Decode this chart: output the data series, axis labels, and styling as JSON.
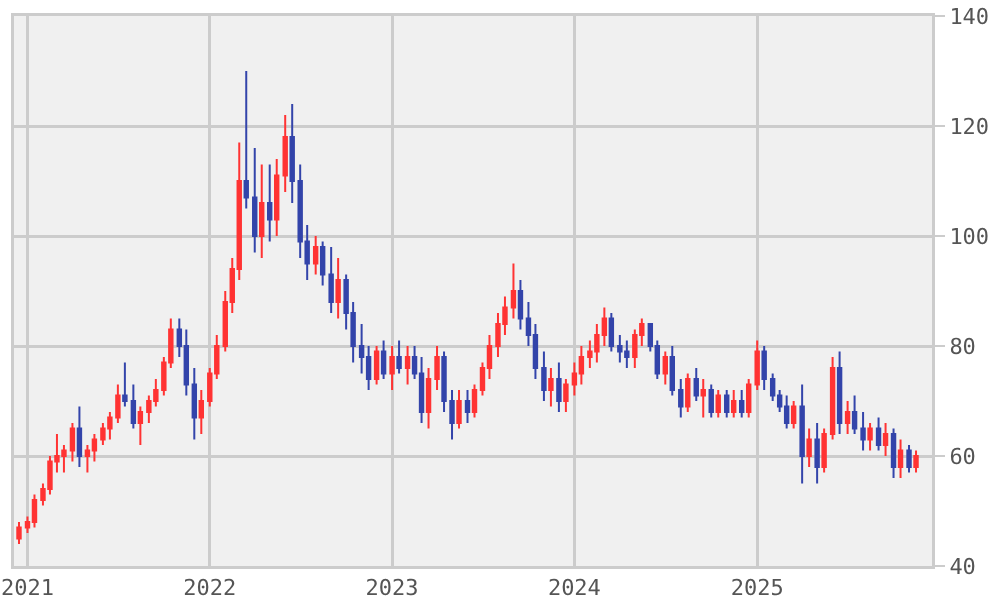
{
  "chart_data": {
    "type": "candlestick",
    "x": [
      "2020-12-15",
      "2021-01-01",
      "2021-01-15",
      "2021-02-01",
      "2021-02-15",
      "2021-03-01",
      "2021-03-15",
      "2021-04-01",
      "2021-04-15",
      "2021-05-01",
      "2021-05-15",
      "2021-06-01",
      "2021-06-15",
      "2021-07-01",
      "2021-07-15",
      "2021-08-01",
      "2021-08-15",
      "2021-09-01",
      "2021-09-15",
      "2021-10-01",
      "2021-10-15",
      "2021-11-01",
      "2021-11-15",
      "2021-12-01",
      "2021-12-15",
      "2022-01-01",
      "2022-01-15",
      "2022-02-01",
      "2022-02-15",
      "2022-03-01",
      "2022-03-15",
      "2022-04-01",
      "2022-04-15",
      "2022-05-01",
      "2022-05-15",
      "2022-06-01",
      "2022-06-15",
      "2022-07-01",
      "2022-07-15",
      "2022-08-01",
      "2022-08-15",
      "2022-09-01",
      "2022-09-15",
      "2022-10-01",
      "2022-10-15",
      "2022-11-01",
      "2022-11-15",
      "2022-12-01",
      "2022-12-15",
      "2023-01-01",
      "2023-01-15",
      "2023-02-01",
      "2023-02-15",
      "2023-03-01",
      "2023-03-15",
      "2023-04-01",
      "2023-04-15",
      "2023-05-01",
      "2023-05-15",
      "2023-06-01",
      "2023-06-15",
      "2023-07-01",
      "2023-07-15",
      "2023-08-01",
      "2023-08-15",
      "2023-09-01",
      "2023-09-15",
      "2023-10-01",
      "2023-10-15",
      "2023-11-01",
      "2023-11-15",
      "2023-12-01",
      "2023-12-15",
      "2024-01-01",
      "2024-01-15",
      "2024-02-01",
      "2024-02-15",
      "2024-03-01",
      "2024-03-15",
      "2024-04-01",
      "2024-04-15",
      "2024-05-01",
      "2024-05-15",
      "2024-06-01",
      "2024-06-15",
      "2024-07-01",
      "2024-07-15",
      "2024-08-01",
      "2024-08-15",
      "2024-09-01",
      "2024-09-15",
      "2024-10-01",
      "2024-10-15",
      "2024-11-01",
      "2024-11-15",
      "2024-12-01",
      "2024-12-15",
      "2025-01-01",
      "2025-01-15",
      "2025-02-01",
      "2025-02-15",
      "2025-03-01",
      "2025-03-15",
      "2025-04-01",
      "2025-04-15",
      "2025-05-01",
      "2025-05-15",
      "2025-06-01",
      "2025-06-15",
      "2025-07-01",
      "2025-07-15",
      "2025-08-01",
      "2025-08-15",
      "2025-09-01",
      "2025-09-15",
      "2025-10-01",
      "2025-10-15",
      "2025-11-01",
      "2025-11-15"
    ],
    "ohlc": [
      [
        45,
        48,
        44,
        47
      ],
      [
        47,
        49,
        46,
        48
      ],
      [
        48,
        53,
        47,
        52
      ],
      [
        52,
        55,
        51,
        54
      ],
      [
        54,
        60,
        53,
        59
      ],
      [
        59,
        64,
        57,
        60
      ],
      [
        60,
        62,
        57,
        61
      ],
      [
        61,
        66,
        59,
        65
      ],
      [
        65,
        69,
        58,
        60
      ],
      [
        60,
        62,
        57,
        61
      ],
      [
        61,
        64,
        59,
        63
      ],
      [
        63,
        66,
        62,
        65
      ],
      [
        65,
        68,
        63,
        67
      ],
      [
        67,
        73,
        66,
        71
      ],
      [
        71,
        77,
        69,
        70
      ],
      [
        70,
        73,
        65,
        66
      ],
      [
        66,
        69,
        62,
        68
      ],
      [
        68,
        71,
        66,
        70
      ],
      [
        70,
        74,
        69,
        72
      ],
      [
        72,
        78,
        71,
        77
      ],
      [
        77,
        85,
        76,
        83
      ],
      [
        83,
        85,
        78,
        80
      ],
      [
        80,
        83,
        71,
        73
      ],
      [
        73,
        76,
        63,
        67
      ],
      [
        67,
        72,
        64,
        70
      ],
      [
        70,
        76,
        69,
        75
      ],
      [
        75,
        82,
        74,
        80
      ],
      [
        80,
        90,
        79,
        88
      ],
      [
        88,
        96,
        86,
        94
      ],
      [
        94,
        117,
        92,
        110
      ],
      [
        110,
        130,
        105,
        107
      ],
      [
        107,
        116,
        97,
        100
      ],
      [
        100,
        113,
        96,
        106
      ],
      [
        106,
        113,
        99,
        103
      ],
      [
        103,
        114,
        100,
        111
      ],
      [
        111,
        122,
        108,
        118
      ],
      [
        118,
        124,
        106,
        110
      ],
      [
        110,
        113,
        96,
        99
      ],
      [
        99,
        102,
        92,
        95
      ],
      [
        95,
        100,
        93,
        98
      ],
      [
        98,
        99,
        91,
        93
      ],
      [
        93,
        98,
        86,
        88
      ],
      [
        88,
        96,
        85,
        92
      ],
      [
        92,
        93,
        83,
        86
      ],
      [
        86,
        88,
        77,
        80
      ],
      [
        80,
        84,
        75,
        78
      ],
      [
        78,
        80,
        72,
        74
      ],
      [
        74,
        80,
        73,
        79
      ],
      [
        79,
        81,
        74,
        75
      ],
      [
        75,
        80,
        72,
        78
      ],
      [
        78,
        81,
        75,
        76
      ],
      [
        76,
        80,
        73,
        78
      ],
      [
        78,
        80,
        74,
        75
      ],
      [
        75,
        78,
        66,
        68
      ],
      [
        68,
        76,
        65,
        74
      ],
      [
        74,
        80,
        72,
        78
      ],
      [
        78,
        79,
        68,
        70
      ],
      [
        70,
        72,
        63,
        66
      ],
      [
        66,
        72,
        65,
        70
      ],
      [
        70,
        72,
        66,
        68
      ],
      [
        68,
        73,
        67,
        72
      ],
      [
        72,
        77,
        71,
        76
      ],
      [
        76,
        82,
        74,
        80
      ],
      [
        80,
        86,
        78,
        84
      ],
      [
        84,
        89,
        82,
        87
      ],
      [
        87,
        95,
        85,
        90
      ],
      [
        90,
        92,
        83,
        85
      ],
      [
        85,
        88,
        80,
        82
      ],
      [
        82,
        84,
        74,
        76
      ],
      [
        76,
        79,
        70,
        72
      ],
      [
        72,
        76,
        69,
        74
      ],
      [
        74,
        77,
        68,
        70
      ],
      [
        70,
        74,
        68,
        73
      ],
      [
        73,
        77,
        71,
        75
      ],
      [
        75,
        80,
        73,
        78
      ],
      [
        78,
        81,
        76,
        79
      ],
      [
        79,
        84,
        77,
        82
      ],
      [
        82,
        87,
        80,
        85
      ],
      [
        85,
        86,
        79,
        80
      ],
      [
        80,
        82,
        77,
        79
      ],
      [
        79,
        81,
        76,
        78
      ],
      [
        78,
        83,
        76,
        82
      ],
      [
        82,
        85,
        80,
        84
      ],
      [
        84,
        84,
        79,
        80
      ],
      [
        80,
        81,
        74,
        75
      ],
      [
        75,
        79,
        73,
        78
      ],
      [
        78,
        80,
        71,
        72
      ],
      [
        72,
        74,
        67,
        69
      ],
      [
        69,
        75,
        68,
        74
      ],
      [
        74,
        76,
        70,
        71
      ],
      [
        71,
        74,
        67,
        72
      ],
      [
        72,
        73,
        67,
        68
      ],
      [
        68,
        72,
        67,
        71
      ],
      [
        71,
        72,
        67,
        68
      ],
      [
        68,
        72,
        67,
        70
      ],
      [
        70,
        72,
        67,
        68
      ],
      [
        68,
        74,
        67,
        73
      ],
      [
        73,
        81,
        72,
        79
      ],
      [
        79,
        80,
        72,
        74
      ],
      [
        74,
        75,
        70,
        71
      ],
      [
        71,
        72,
        68,
        69
      ],
      [
        69,
        71,
        65,
        66
      ],
      [
        66,
        70,
        65,
        69
      ],
      [
        69,
        73,
        55,
        60
      ],
      [
        60,
        65,
        58,
        63
      ],
      [
        63,
        66,
        55,
        58
      ],
      [
        58,
        65,
        57,
        64
      ],
      [
        64,
        78,
        63,
        76
      ],
      [
        76,
        79,
        64,
        66
      ],
      [
        66,
        70,
        64,
        68
      ],
      [
        68,
        71,
        64,
        65
      ],
      [
        65,
        68,
        61,
        63
      ],
      [
        63,
        66,
        61,
        65
      ],
      [
        65,
        67,
        61,
        62
      ],
      [
        62,
        66,
        60,
        64
      ],
      [
        64,
        65,
        56,
        58
      ],
      [
        58,
        63,
        56,
        61
      ],
      [
        61,
        62,
        57,
        58
      ],
      [
        58,
        61,
        57,
        60
      ]
    ],
    "colors": [
      "#ff3333",
      "#ff3333",
      "#ff3333",
      "#ff3333",
      "#ff3333",
      "#ff3333",
      "#ff3333",
      "#ff3333",
      "#3344aa",
      "#ff3333",
      "#ff3333",
      "#ff3333",
      "#ff3333",
      "#ff3333",
      "#3344aa",
      "#3344aa",
      "#ff3333",
      "#ff3333",
      "#ff3333",
      "#ff3333",
      "#ff3333",
      "#3344aa",
      "#3344aa",
      "#3344aa",
      "#ff3333",
      "#ff3333",
      "#ff3333",
      "#ff3333",
      "#ff3333",
      "#ff3333",
      "#3344aa",
      "#3344aa",
      "#ff3333",
      "#3344aa",
      "#ff3333",
      "#ff3333",
      "#3344aa",
      "#3344aa",
      "#3344aa",
      "#ff3333",
      "#3344aa",
      "#3344aa",
      "#ff3333",
      "#3344aa",
      "#3344aa",
      "#3344aa",
      "#3344aa",
      "#ff3333",
      "#3344aa",
      "#ff3333",
      "#3344aa",
      "#ff3333",
      "#3344aa",
      "#3344aa",
      "#ff3333",
      "#ff3333",
      "#3344aa",
      "#3344aa",
      "#ff3333",
      "#3344aa",
      "#ff3333",
      "#ff3333",
      "#ff3333",
      "#ff3333",
      "#ff3333",
      "#ff3333",
      "#3344aa",
      "#3344aa",
      "#3344aa",
      "#3344aa",
      "#ff3333",
      "#3344aa",
      "#ff3333",
      "#ff3333",
      "#ff3333",
      "#ff3333",
      "#ff3333",
      "#ff3333",
      "#3344aa",
      "#3344aa",
      "#3344aa",
      "#ff3333",
      "#ff3333",
      "#3344aa",
      "#3344aa",
      "#ff3333",
      "#3344aa",
      "#3344aa",
      "#ff3333",
      "#3344aa",
      "#ff3333",
      "#3344aa",
      "#ff3333",
      "#3344aa",
      "#ff3333",
      "#3344aa",
      "#ff3333",
      "#ff3333",
      "#3344aa",
      "#3344aa",
      "#3344aa",
      "#3344aa",
      "#ff3333",
      "#3344aa",
      "#ff3333",
      "#3344aa",
      "#ff3333",
      "#ff3333",
      "#3344aa",
      "#ff3333",
      "#3344aa",
      "#3344aa",
      "#ff3333",
      "#3344aa",
      "#ff3333",
      "#3344aa",
      "#ff3333",
      "#3344aa",
      "#ff3333"
    ],
    "xlim": [
      "2020-12-05",
      "2025-12-17"
    ],
    "xticks": [
      {
        "value": "2021-01-01",
        "label": "2021"
      },
      {
        "value": "2022-01-01",
        "label": "2022"
      },
      {
        "value": "2023-01-01",
        "label": "2023"
      },
      {
        "value": "2024-01-01",
        "label": "2024"
      },
      {
        "value": "2025-01-01",
        "label": "2025"
      }
    ],
    "ylim": [
      40,
      140
    ],
    "yticks": [
      40,
      60,
      80,
      100,
      120,
      140
    ],
    "grid": true
  }
}
